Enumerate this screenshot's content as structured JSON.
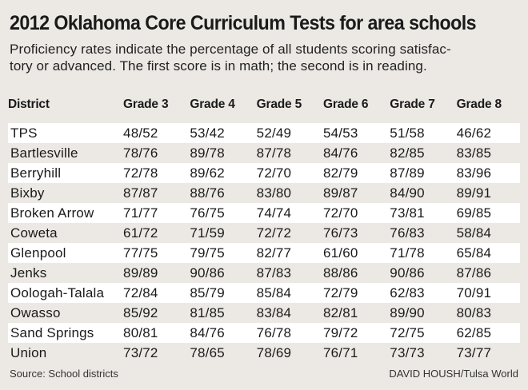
{
  "title": "2012 Oklahoma Core Curriculum Tests for area schools",
  "subtitle_line1": "Proficiency rates indicate the percentage of all students scoring satisfac-",
  "subtitle_line2": "tory or advanced. The first score is in math; the second is in reading.",
  "table": {
    "headers": [
      "District",
      "Grade 3",
      "Grade 4",
      "Grade 5",
      "Grade 6",
      "Grade 7",
      "Grade 8"
    ],
    "rows": [
      {
        "district": "TPS",
        "scores": [
          "48/52",
          "53/42",
          "52/49",
          "54/53",
          "51/58",
          "46/62"
        ]
      },
      {
        "district": "Bartlesville",
        "scores": [
          "78/76",
          "89/78",
          "87/78",
          "84/76",
          "82/85",
          "83/85"
        ]
      },
      {
        "district": "Berryhill",
        "scores": [
          "72/78",
          "89/62",
          "72/70",
          "82/79",
          "87/89",
          "83/96"
        ]
      },
      {
        "district": "Bixby",
        "scores": [
          "87/87",
          "88/76",
          "83/80",
          "89/87",
          "84/90",
          "89/91"
        ]
      },
      {
        "district": "Broken Arrow",
        "scores": [
          "71/77",
          "76/75",
          "74/74",
          "72/70",
          "73/81",
          "69/85"
        ]
      },
      {
        "district": "Coweta",
        "scores": [
          "61/72",
          "71/59",
          "72/72",
          "76/73",
          "76/83",
          "58/84"
        ]
      },
      {
        "district": "Glenpool",
        "scores": [
          "77/75",
          "79/75",
          "82/77",
          "61/60",
          "71/78",
          "65/84"
        ]
      },
      {
        "district": "Jenks",
        "scores": [
          "89/89",
          "90/86",
          "87/83",
          "88/86",
          "90/86",
          "87/86"
        ]
      },
      {
        "district": "Oologah-Talala",
        "scores": [
          "72/84",
          "85/79",
          "85/84",
          "72/79",
          "62/83",
          "70/91"
        ]
      },
      {
        "district": "Owasso",
        "scores": [
          "85/92",
          "81/85",
          "83/84",
          "82/81",
          "89/90",
          "80/83"
        ]
      },
      {
        "district": "Sand Springs",
        "scores": [
          "80/81",
          "84/76",
          "76/78",
          "79/72",
          "72/75",
          "62/85"
        ]
      },
      {
        "district": "Union",
        "scores": [
          "73/72",
          "78/65",
          "78/69",
          "76/71",
          "73/73",
          "73/77"
        ]
      }
    ]
  },
  "source": "Source: School districts",
  "credit": "DAVID HOUSH/Tulsa World"
}
